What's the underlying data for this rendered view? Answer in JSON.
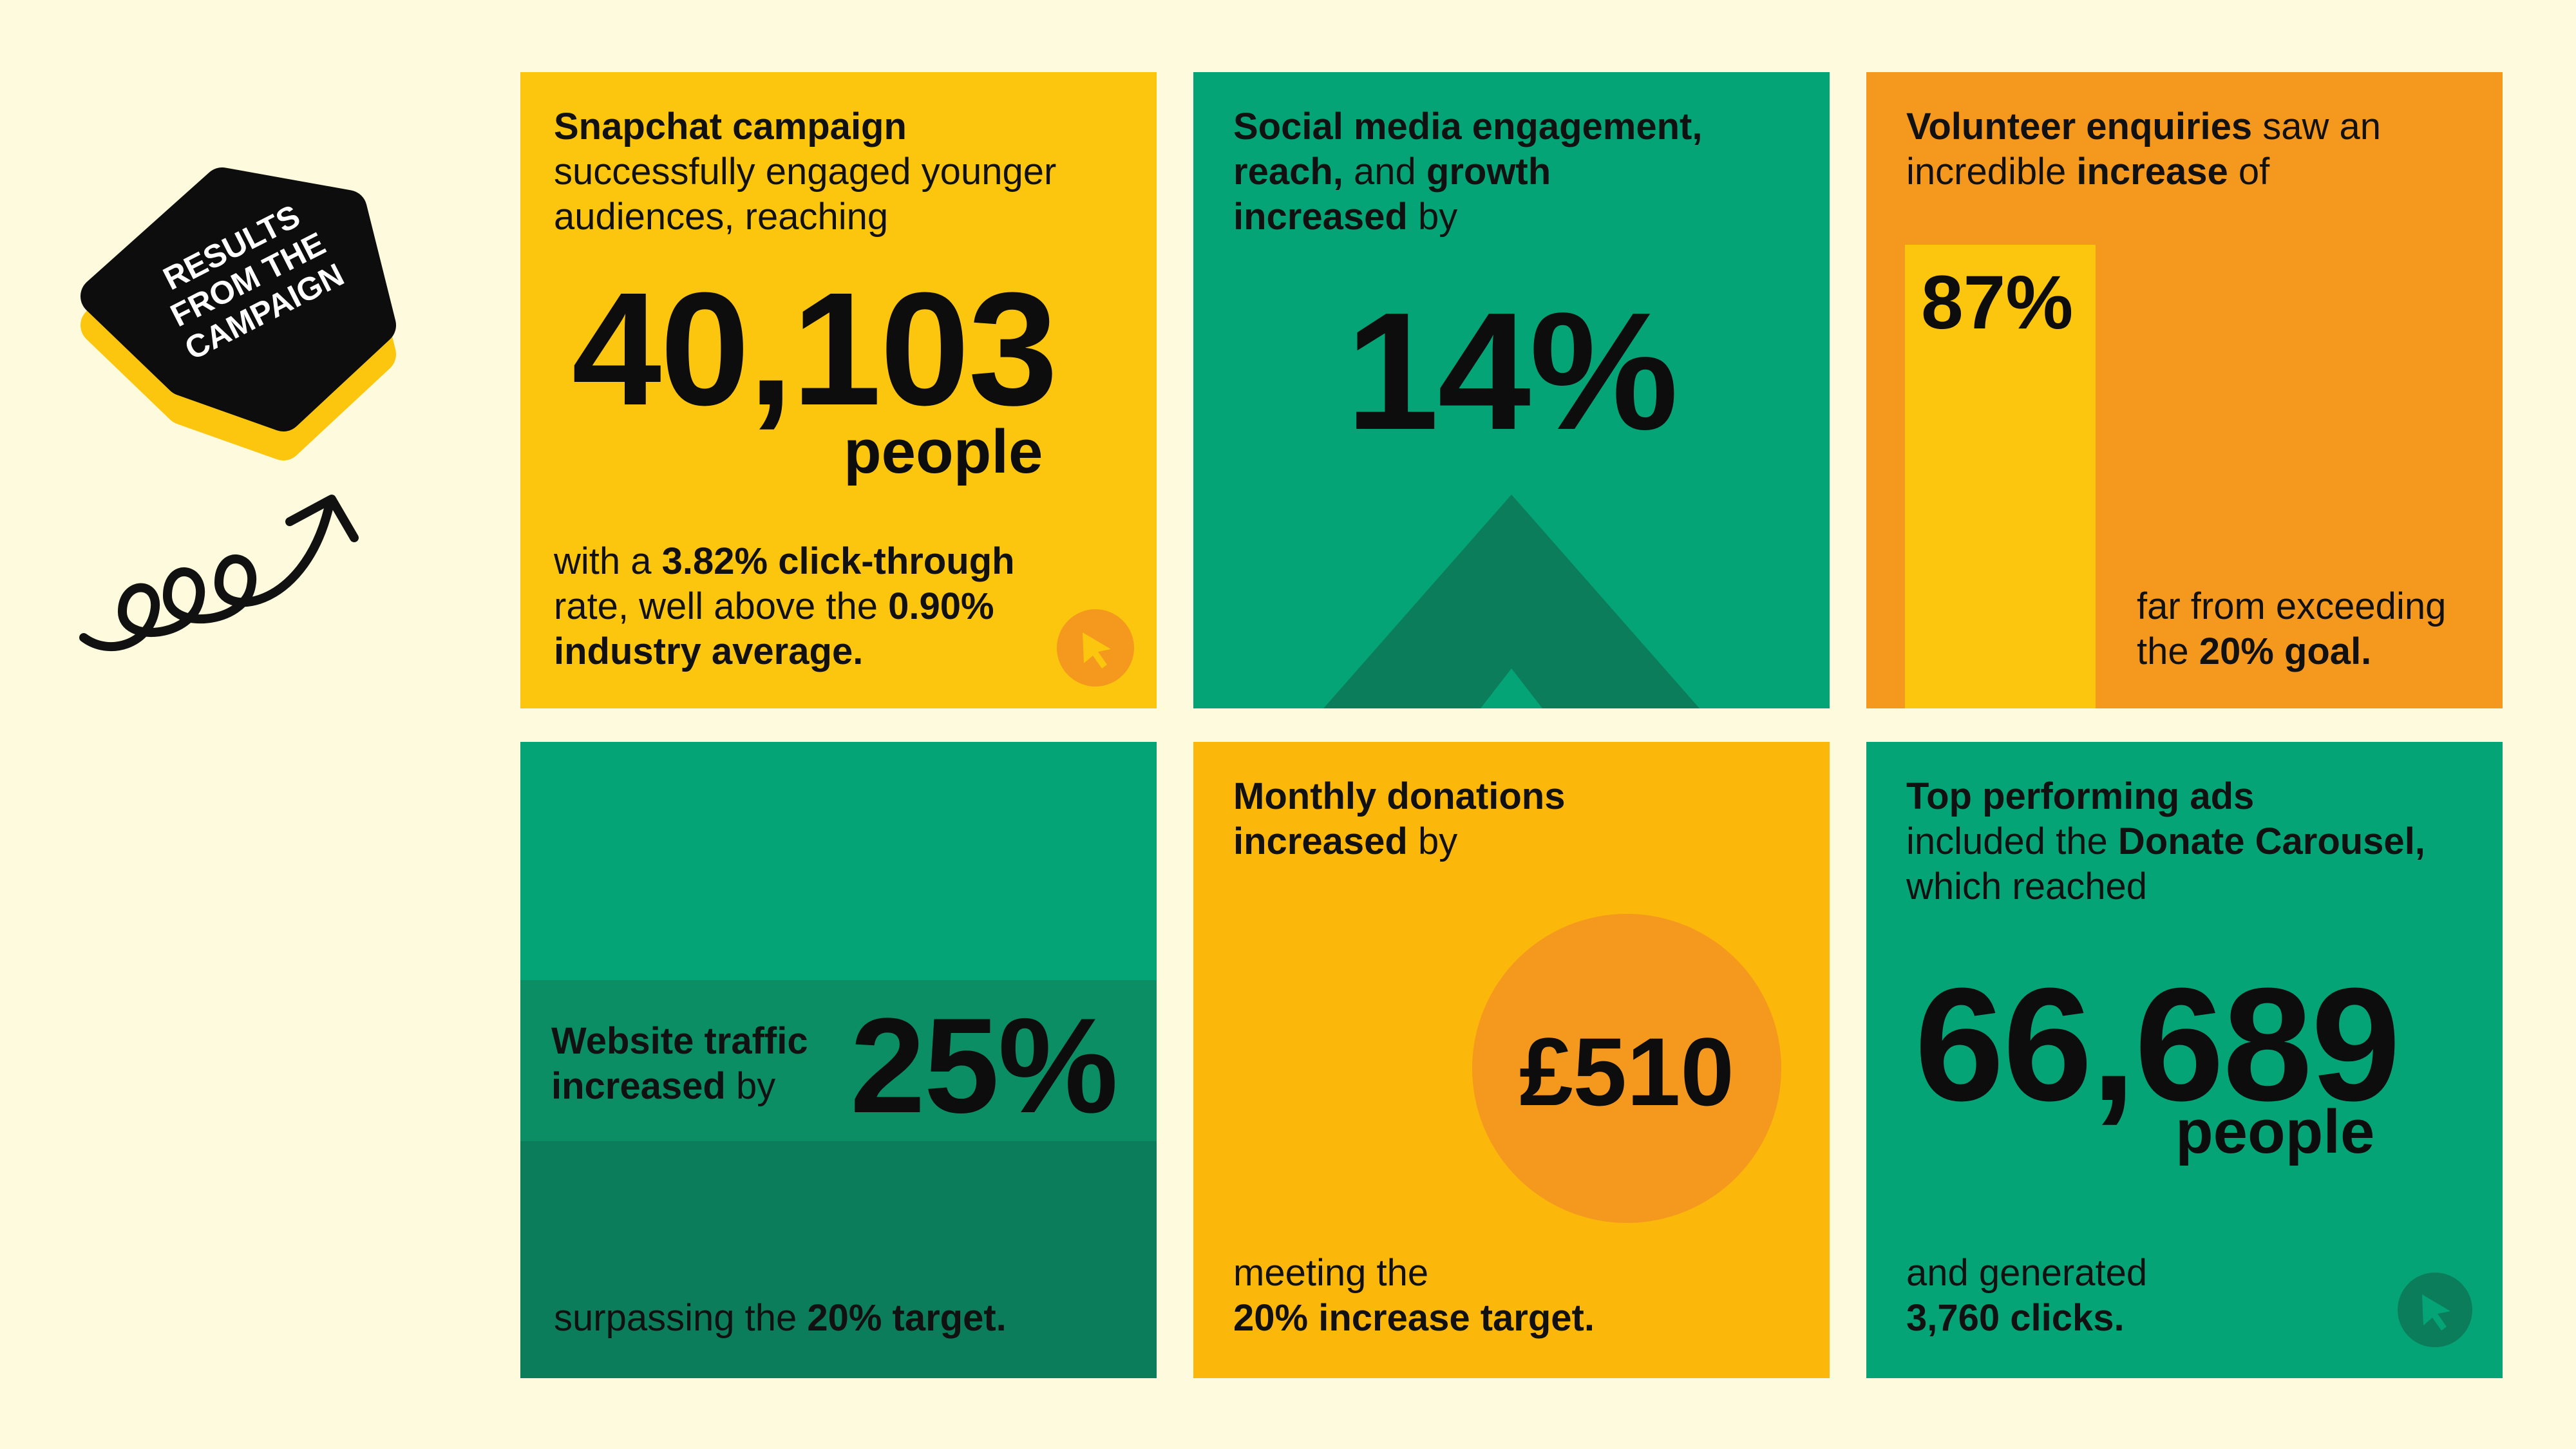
{
  "badge": {
    "lines": [
      "RESULTS",
      "FROM THE",
      "CAMPAIGN"
    ]
  },
  "colors": {
    "background": "#fefade",
    "yellow": "#fcc60e",
    "green": "#05a477",
    "dark_green": "#0c7d5a",
    "orange": "#f4981e",
    "amber": "#fcb70b"
  },
  "cards": {
    "snapchat": {
      "heading_bold": "Snapchat campaign",
      "heading_rest": "successfully engaged younger audiences, reaching",
      "big_number": "40,103",
      "unit": "people",
      "footer_1": "with a ",
      "footer_bold_1": "3.82% click-through",
      "footer_2": "rate, well above the ",
      "footer_bold_2": "0.90%",
      "footer_bold_3": "industry average.",
      "icon": "cursor-icon"
    },
    "social": {
      "bold_1": "Social media engagement,",
      "bold_2": "reach,",
      "rest_1": " and ",
      "bold_3": "growth",
      "bold_4": "increased",
      "rest_2": " by",
      "big_number": "14%",
      "icon": "up-arrow-icon"
    },
    "volunteer": {
      "bold_1": "Volunteer enquiries",
      "rest_1": " saw an incredible ",
      "bold_2": "increase",
      "rest_2": " of",
      "bar_label": "87%",
      "bar_value": 87,
      "footer_1": "far from exceeding the ",
      "footer_bold": "20% goal."
    },
    "website": {
      "bold_1": "Website traffic",
      "bold_2": "increased",
      "rest": " by",
      "big_number": "25%",
      "footer_1": "surpassing the ",
      "footer_bold": "20% target."
    },
    "donations": {
      "bold_1": "Monthly donations",
      "bold_2": "increased",
      "rest": " by",
      "big_number": "£510",
      "footer_1": "meeting the",
      "footer_bold": "20% increase target."
    },
    "ads": {
      "bold_1": "Top performing ads",
      "rest_1": "included the ",
      "bold_2": "Donate Carousel,",
      "rest_2": "which reached",
      "big_number": "66,689",
      "unit": "people",
      "footer_1": "and generated",
      "footer_bold": "3,760 clicks.",
      "icon": "cursor-icon"
    }
  }
}
